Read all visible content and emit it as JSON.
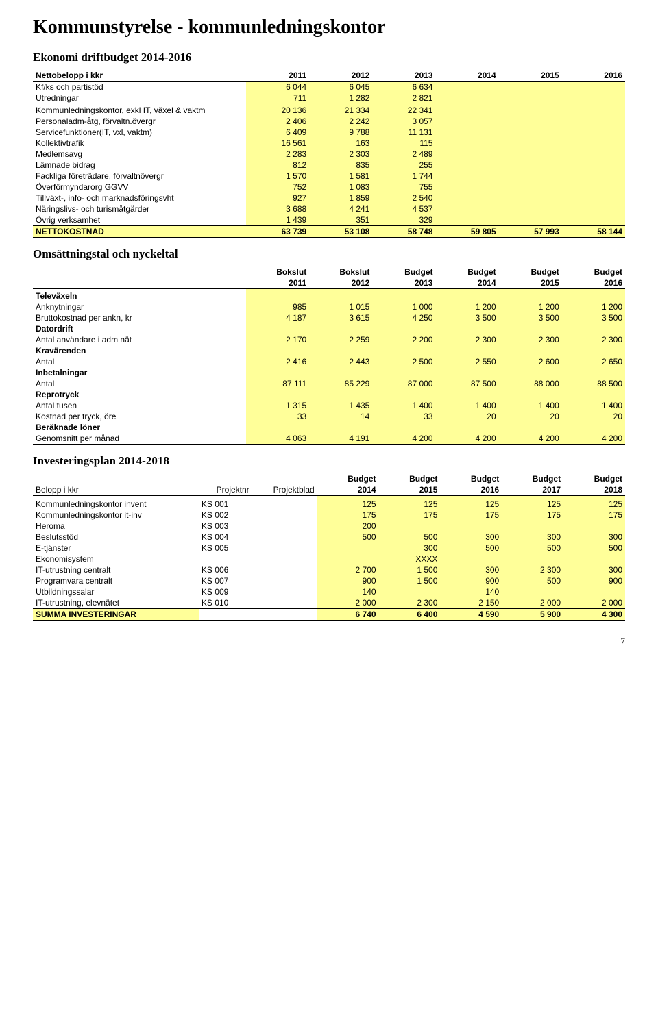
{
  "page": {
    "title": "Kommunstyrelse - kommunledningskontor",
    "page_number": "7"
  },
  "colors": {
    "highlight": "#ffff99",
    "border": "#000000",
    "background": "#ffffff"
  },
  "drift": {
    "heading": "Ekonomi driftbudget 2014-2016",
    "header_label": "Nettobelopp i kkr",
    "years": [
      "2011",
      "2012",
      "2013",
      "2014",
      "2015",
      "2016"
    ],
    "rows": [
      {
        "label": "Kf/ks och partistöd",
        "v": [
          "6 044",
          "6 045",
          "6 634",
          "",
          "",
          ""
        ]
      },
      {
        "label": "Utredningar",
        "v": [
          "711",
          "1 282",
          "2 821",
          "",
          "",
          ""
        ]
      },
      {
        "label": "",
        "v": [
          "",
          "",
          "",
          "",
          "",
          ""
        ],
        "blank": true
      },
      {
        "label": "Kommunledningskontor, exkl IT, växel & vaktm",
        "v": [
          "20 136",
          "21 334",
          "22 341",
          "",
          "",
          ""
        ]
      },
      {
        "label": "Personaladm-åtg, förvaltn.övergr",
        "v": [
          "2 406",
          "2 242",
          "3 057",
          "",
          "",
          ""
        ]
      },
      {
        "label": "Servicefunktioner(IT, vxl, vaktm)",
        "v": [
          "6 409",
          "9 788",
          "11 131",
          "",
          "",
          ""
        ]
      },
      {
        "label": "Kollektivtrafik",
        "v": [
          "16 561",
          "163",
          "115",
          "",
          "",
          ""
        ]
      },
      {
        "label": "Medlemsavg",
        "v": [
          "2 283",
          "2 303",
          "2 489",
          "",
          "",
          ""
        ]
      },
      {
        "label": "Lämnade bidrag",
        "v": [
          "812",
          "835",
          "255",
          "",
          "",
          ""
        ]
      },
      {
        "label": "Fackliga företrädare, förvaltnövergr",
        "v": [
          "1 570",
          "1 581",
          "1 744",
          "",
          "",
          ""
        ]
      },
      {
        "label": "Överförmyndarorg GGVV",
        "v": [
          "752",
          "1 083",
          "755",
          "",
          "",
          ""
        ]
      },
      {
        "label": "Tillväxt-, info- och marknadsföringsvht",
        "v": [
          "927",
          "1 859",
          "2 540",
          "",
          "",
          ""
        ]
      },
      {
        "label": "Näringslivs- och turismåtgärder",
        "v": [
          "3 688",
          "4 241",
          "4 537",
          "",
          "",
          ""
        ]
      },
      {
        "label": "Övrig verksamhet",
        "v": [
          "1 439",
          "351",
          "329",
          "",
          "",
          ""
        ]
      }
    ],
    "netto": {
      "label": "NETTOKOSTNAD",
      "v": [
        "63 739",
        "53 108",
        "58 748",
        "59 805",
        "57 993",
        "58 144"
      ]
    }
  },
  "omsattning": {
    "heading": "Omsättningstal och nyckeltal",
    "header_top": [
      "Bokslut",
      "Bokslut",
      "Budget",
      "Budget",
      "Budget",
      "Budget"
    ],
    "header_bot": [
      "2011",
      "2012",
      "2013",
      "2014",
      "2015",
      "2016"
    ],
    "groups": [
      {
        "name": "Televäxeln",
        "rows": [
          {
            "label": "Anknytningar",
            "v": [
              "985",
              "1 015",
              "1 000",
              "1 200",
              "1 200",
              "1 200"
            ]
          },
          {
            "label": "Bruttokostnad per ankn, kr",
            "v": [
              "4 187",
              "3 615",
              "4 250",
              "3 500",
              "3 500",
              "3 500"
            ]
          }
        ]
      },
      {
        "name": "Datordrift",
        "rows": [
          {
            "label": "Antal användare i adm nät",
            "v": [
              "2 170",
              "2 259",
              "2 200",
              "2 300",
              "2 300",
              "2 300"
            ]
          }
        ]
      },
      {
        "name": "Kravärenden",
        "rows": [
          {
            "label": "Antal",
            "v": [
              "2 416",
              "2 443",
              "2 500",
              "2 550",
              "2 600",
              "2 650"
            ]
          }
        ]
      },
      {
        "name": "Inbetalningar",
        "rows": [
          {
            "label": "Antal",
            "v": [
              "87 111",
              "85 229",
              "87 000",
              "87 500",
              "88 000",
              "88 500"
            ]
          }
        ]
      },
      {
        "name": "Reprotryck",
        "rows": [
          {
            "label": "Antal tusen",
            "v": [
              "1 315",
              "1 435",
              "1 400",
              "1 400",
              "1 400",
              "1 400"
            ]
          },
          {
            "label": "Kostnad per tryck, öre",
            "v": [
              "33",
              "14",
              "33",
              "20",
              "20",
              "20"
            ]
          }
        ]
      },
      {
        "name": "Beräknade löner",
        "rows": [],
        "last": true
      },
      {
        "name": "",
        "rows": [
          {
            "label": "Genomsnitt per månad",
            "v": [
              "4 063",
              "4 191",
              "4 200",
              "4 200",
              "4 200",
              "4 200"
            ],
            "border_bottom": true
          }
        ],
        "noheader": true
      }
    ]
  },
  "invest": {
    "heading": "Investeringsplan 2014-2018",
    "header_top_label": "Belopp i kkr",
    "header_top_prj": "Projektnr",
    "header_top_blad": "Projektblad",
    "header_top": [
      "Budget",
      "Budget",
      "Budget",
      "Budget",
      "Budget"
    ],
    "header_bot": [
      "2014",
      "2015",
      "2016",
      "2017",
      "2018"
    ],
    "rows": [
      {
        "label": "Kommunledningskontor invent",
        "prj": "KS 001",
        "blad": "",
        "v": [
          "125",
          "125",
          "125",
          "125",
          "125"
        ]
      },
      {
        "label": "Kommunledningskontor it-inv",
        "prj": "KS 002",
        "blad": "",
        "v": [
          "175",
          "175",
          "175",
          "175",
          "175"
        ]
      },
      {
        "label": "Heroma",
        "prj": "KS 003",
        "blad": "",
        "v": [
          "200",
          "",
          "",
          "",
          ""
        ]
      },
      {
        "label": "Beslutsstöd",
        "prj": "KS 004",
        "blad": "",
        "v": [
          "500",
          "500",
          "300",
          "300",
          "300"
        ]
      },
      {
        "label": "E-tjänster",
        "prj": "KS 005",
        "blad": "",
        "v": [
          "",
          "300",
          "500",
          "500",
          "500"
        ]
      },
      {
        "label": "Ekonomisystem",
        "prj": "",
        "blad": "",
        "v": [
          "",
          "XXXX",
          "",
          "",
          ""
        ]
      },
      {
        "label": "IT-utrustning centralt",
        "prj": "KS 006",
        "blad": "",
        "v": [
          "2 700",
          "1 500",
          "300",
          "2 300",
          "300"
        ]
      },
      {
        "label": "Programvara centralt",
        "prj": "KS 007",
        "blad": "",
        "v": [
          "900",
          "1 500",
          "900",
          "500",
          "900"
        ]
      },
      {
        "label": "Utbildningssalar",
        "prj": "KS 009",
        "blad": "",
        "v": [
          "140",
          "",
          "140",
          "",
          ""
        ]
      },
      {
        "label": "IT-utrustning, elevnätet",
        "prj": "KS 010",
        "blad": "",
        "v": [
          "2 000",
          "2 300",
          "2 150",
          "2 000",
          "2 000"
        ]
      }
    ],
    "sum": {
      "label": "SUMMA INVESTERINGAR",
      "v": [
        "6 740",
        "6 400",
        "4 590",
        "5 900",
        "4 300"
      ]
    }
  }
}
